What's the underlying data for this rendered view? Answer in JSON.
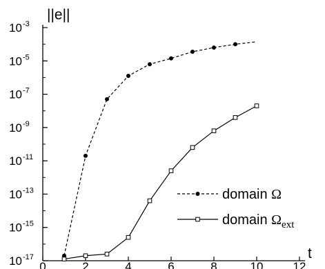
{
  "chart_data": {
    "type": "line",
    "title": "",
    "xlabel": "t",
    "ylabel": "||e||",
    "xlim": [
      0,
      12
    ],
    "ylim_exponent": [
      -17,
      -3
    ],
    "yscale": "log",
    "x_ticks": [
      0,
      2,
      4,
      6,
      8,
      10,
      12
    ],
    "y_ticks": [
      {
        "base": "10",
        "exp": "-3",
        "value_exp": -3
      },
      {
        "base": "10",
        "exp": "-5",
        "value_exp": -5
      },
      {
        "base": "10",
        "exp": "-7",
        "value_exp": -7
      },
      {
        "base": "10",
        "exp": "-9",
        "value_exp": -9
      },
      {
        "base": "10",
        "exp": "-11",
        "value_exp": -11
      },
      {
        "base": "10",
        "exp": "-13",
        "value_exp": -13
      },
      {
        "base": "10",
        "exp": "-15",
        "value_exp": -15
      },
      {
        "base": "10",
        "exp": "-17",
        "value_exp": -17
      }
    ],
    "grid": false,
    "legend_position": "lower-right",
    "series": [
      {
        "name": "domain Ω",
        "name_text": "domain ",
        "name_symbol": "Ω",
        "name_sub": "",
        "line_style": "dashed",
        "marker": "filled-circle",
        "x": [
          1,
          2,
          3,
          4,
          5,
          6,
          7,
          8,
          9
        ],
        "log10_y": [
          -16.7,
          -10.7,
          -7.3,
          -5.9,
          -5.2,
          -4.85,
          -4.45,
          -4.2,
          -4.0
        ],
        "trailing_line_end": {
          "x": 10,
          "log10_y": -3.85
        }
      },
      {
        "name": "domain Ωext",
        "name_text": "domain ",
        "name_symbol": "Ω",
        "name_sub": "ext",
        "line_style": "solid",
        "marker": "open-square",
        "x": [
          1,
          2,
          3,
          4,
          5,
          6,
          7,
          8,
          9,
          10
        ],
        "log10_y": [
          -16.9,
          -16.7,
          -16.6,
          -15.6,
          -13.4,
          -11.6,
          -10.2,
          -9.2,
          -8.4,
          -7.7
        ]
      }
    ]
  }
}
